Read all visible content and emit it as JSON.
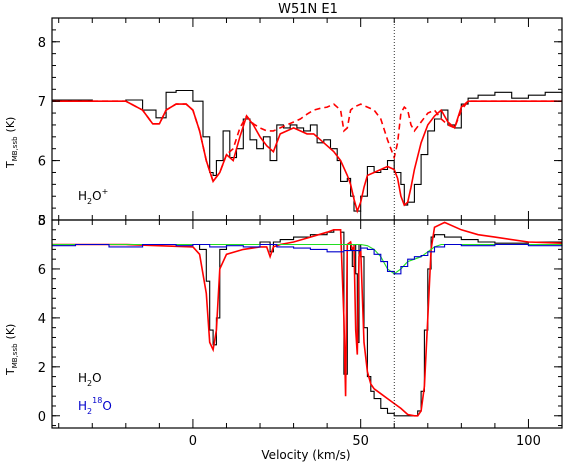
{
  "chart_data": [
    {
      "type": "line",
      "title": "W51N E1",
      "panel": "top",
      "ylabel_main": "T",
      "ylabel_sub": "MB,ssb",
      "ylabel_unit": "(K)",
      "annotation_main": "H",
      "annotation_sub": "2",
      "annotation_rest": "O",
      "annotation_sup": "+",
      "ylim": [
        5,
        8.4
      ],
      "yticks": [
        5,
        6,
        7,
        8
      ],
      "xlim": [
        -42,
        110
      ],
      "vline": 60,
      "series": [
        {
          "name": "",
          "color": "#000000",
          "style": "step",
          "x": [
            -42,
            -30,
            -20,
            -15,
            -11,
            -8,
            -5,
            0,
            3,
            5,
            6,
            7,
            9,
            11,
            13,
            15,
            17,
            19,
            21,
            23,
            25,
            27,
            29,
            31,
            33,
            35,
            37,
            39,
            41,
            43,
            44,
            46,
            47,
            48,
            49,
            50,
            52,
            54,
            56,
            58,
            60,
            62,
            63,
            64,
            66,
            68,
            70,
            72,
            74,
            76,
            78,
            80,
            82,
            85,
            90,
            95,
            100,
            105,
            110
          ],
          "y": [
            7.02,
            7.0,
            7.02,
            6.85,
            6.72,
            7.15,
            7.18,
            7.0,
            6.4,
            5.8,
            5.75,
            6.0,
            6.5,
            6.05,
            6.2,
            6.7,
            6.35,
            6.2,
            6.4,
            6.0,
            6.6,
            6.55,
            6.6,
            6.55,
            6.5,
            6.6,
            6.3,
            6.35,
            6.2,
            6.0,
            5.65,
            5.7,
            5.4,
            5.15,
            5.15,
            5.4,
            5.9,
            5.8,
            5.85,
            6.0,
            5.8,
            5.6,
            5.25,
            5.3,
            5.6,
            6.1,
            6.5,
            6.7,
            6.85,
            6.6,
            6.55,
            6.95,
            7.05,
            7.1,
            7.15,
            7.05,
            7.1,
            7.15,
            7.12
          ]
        },
        {
          "name": "",
          "color": "#ff0000",
          "style": "solid",
          "x": [
            -42,
            -30,
            -20,
            -15,
            -12,
            -10,
            -8,
            -5,
            -2,
            0,
            2,
            4,
            6,
            8,
            10,
            12,
            14,
            16,
            18,
            20,
            22,
            24,
            26,
            28,
            30,
            32,
            34,
            36,
            38,
            40,
            42,
            44,
            46,
            47,
            48,
            49,
            50,
            51,
            52,
            54,
            56,
            58,
            60,
            61,
            62,
            63,
            64,
            65,
            66,
            68,
            70,
            72,
            74,
            76,
            78,
            80,
            82,
            85,
            90,
            100,
            110
          ],
          "y": [
            7.0,
            7.0,
            7.0,
            6.85,
            6.62,
            6.62,
            6.85,
            6.95,
            6.95,
            6.85,
            6.5,
            6.0,
            5.65,
            5.8,
            6.1,
            6.0,
            6.4,
            6.75,
            6.6,
            6.4,
            6.25,
            6.15,
            6.45,
            6.5,
            6.55,
            6.5,
            6.45,
            6.45,
            6.35,
            6.25,
            6.15,
            6.0,
            5.75,
            5.6,
            5.35,
            5.15,
            5.3,
            5.55,
            5.75,
            5.8,
            5.85,
            5.9,
            5.85,
            5.7,
            5.4,
            5.25,
            5.3,
            5.55,
            5.85,
            6.3,
            6.6,
            6.75,
            6.85,
            6.65,
            6.55,
            6.9,
            7.0,
            7.0,
            7.0,
            7.0,
            7.0
          ]
        },
        {
          "name": "",
          "color": "#ff0000",
          "style": "dashed",
          "x": [
            -42,
            -30,
            -20,
            -15,
            -12,
            -10,
            -8,
            -5,
            -2,
            0,
            2,
            4,
            6,
            8,
            10,
            12,
            14,
            16,
            18,
            20,
            22,
            24,
            26,
            28,
            30,
            32,
            34,
            36,
            38,
            40,
            42,
            44,
            45,
            46,
            47,
            48,
            50,
            52,
            54,
            56,
            58,
            60,
            61,
            62,
            63,
            64,
            65,
            66,
            68,
            70,
            72,
            74,
            76,
            78,
            80,
            82,
            85,
            90,
            100,
            110
          ],
          "y": [
            7.0,
            7.0,
            7.0,
            6.85,
            6.62,
            6.62,
            6.85,
            6.95,
            6.95,
            6.85,
            6.5,
            6.0,
            5.65,
            5.8,
            6.1,
            6.2,
            6.55,
            6.75,
            6.62,
            6.55,
            6.5,
            6.5,
            6.55,
            6.6,
            6.65,
            6.7,
            6.78,
            6.85,
            6.88,
            6.9,
            6.95,
            6.85,
            6.5,
            6.55,
            6.85,
            6.9,
            6.95,
            6.9,
            6.85,
            6.7,
            6.35,
            6.05,
            6.3,
            6.8,
            6.9,
            6.85,
            6.6,
            6.5,
            6.65,
            6.8,
            6.85,
            6.7,
            6.6,
            6.55,
            6.85,
            7.0,
            7.0,
            7.0,
            7.0,
            7.0
          ]
        }
      ]
    },
    {
      "type": "line",
      "panel": "bottom",
      "ylabel_main": "T",
      "ylabel_sub": "MB,ssb",
      "ylabel_unit": "(K)",
      "xlabel": "Velocity  (km/s)",
      "ylim": [
        -0.5,
        8
      ],
      "yticks": [
        0,
        2,
        4,
        6,
        8
      ],
      "xlim": [
        -42,
        110
      ],
      "xticks": [
        0,
        50,
        100
      ],
      "vline": 60,
      "legend_line1": "H",
      "legend_line1_sub": "2",
      "legend_line1_rest": "O",
      "legend_line2": "H",
      "legend_line2_sub": "2",
      "legend_line2_sup": "18",
      "legend_line2_rest": "O",
      "legend_line1_color": "#000000",
      "legend_line2_color": "#0000cc",
      "series": [
        {
          "name": "H2O",
          "color": "#000000",
          "style": "step",
          "x": [
            -42,
            -20,
            0,
            2,
            4,
            5,
            6,
            7,
            8,
            10,
            15,
            20,
            22,
            23,
            24,
            26,
            30,
            35,
            40,
            42,
            44,
            45,
            46,
            47,
            47.5,
            48,
            48.5,
            49,
            49.5,
            50,
            51,
            52,
            53,
            54,
            56,
            58,
            60,
            62,
            64,
            66,
            67,
            68,
            69,
            70,
            71,
            72,
            75,
            80,
            85,
            90,
            100,
            110
          ],
          "y": [
            7.0,
            7.0,
            7.0,
            6.8,
            5.5,
            3.5,
            2.9,
            4.0,
            6.8,
            7.0,
            7.0,
            7.1,
            7.1,
            6.7,
            7.1,
            7.2,
            7.3,
            7.4,
            7.5,
            7.6,
            7.5,
            1.7,
            7.0,
            6.8,
            6.1,
            7.0,
            5.8,
            3.0,
            7.0,
            6.5,
            3.6,
            1.6,
            1.0,
            0.7,
            0.3,
            0.1,
            0.0,
            0.0,
            0.0,
            0.0,
            0.2,
            1.0,
            3.5,
            6.0,
            7.3,
            7.4,
            7.3,
            7.2,
            7.1,
            7.05,
            7.1,
            7.1
          ]
        },
        {
          "name": "",
          "color": "#ff0000",
          "style": "solid",
          "x": [
            -42,
            -20,
            0,
            2,
            4,
            5,
            6,
            7,
            8,
            10,
            15,
            20,
            22,
            23,
            24,
            26,
            30,
            35,
            40,
            42,
            44,
            45,
            45.5,
            46,
            47,
            47.5,
            48,
            48.5,
            49,
            49.5,
            50,
            51,
            52,
            53,
            54,
            56,
            58,
            60,
            62,
            64,
            66,
            67,
            68,
            69,
            70,
            71,
            72,
            75,
            80,
            85,
            90,
            100,
            110
          ],
          "y": [
            7.0,
            7.0,
            6.9,
            6.6,
            5.0,
            3.0,
            2.7,
            3.5,
            6.0,
            6.6,
            6.8,
            6.9,
            6.9,
            6.5,
            6.9,
            7.0,
            7.1,
            7.3,
            7.5,
            7.6,
            7.6,
            4.0,
            0.8,
            7.0,
            7.1,
            6.8,
            6.9,
            3.5,
            2.5,
            6.5,
            6.8,
            3.0,
            1.8,
            1.3,
            1.1,
            0.9,
            0.7,
            0.5,
            0.3,
            0.05,
            0.0,
            0.0,
            0.2,
            1.2,
            4.0,
            6.8,
            7.7,
            7.9,
            7.6,
            7.4,
            7.3,
            7.1,
            7.05
          ]
        },
        {
          "name": "",
          "color": "#22dd22",
          "style": "solid",
          "x": [
            -42,
            -20,
            0,
            20,
            40,
            50,
            52,
            54,
            56,
            58,
            60,
            62,
            64,
            66,
            68,
            70,
            72,
            74,
            80,
            90,
            110
          ],
          "y": [
            7.0,
            7.0,
            7.0,
            7.0,
            7.0,
            7.0,
            6.95,
            6.8,
            6.5,
            6.0,
            5.8,
            6.0,
            6.3,
            6.4,
            6.5,
            6.7,
            6.9,
            7.0,
            7.0,
            7.0,
            7.0
          ]
        },
        {
          "name": "H218O",
          "color": "#0000cc",
          "style": "step",
          "x": [
            -42,
            -35,
            -25,
            -15,
            -5,
            0,
            5,
            10,
            15,
            20,
            25,
            30,
            35,
            40,
            45,
            50,
            52,
            54,
            56,
            58,
            60,
            62,
            64,
            66,
            68,
            70,
            72,
            75,
            80,
            90,
            100,
            110
          ],
          "y": [
            6.95,
            7.0,
            6.9,
            7.0,
            6.95,
            7.0,
            6.9,
            6.95,
            6.9,
            7.0,
            6.9,
            6.85,
            6.8,
            6.7,
            6.75,
            6.85,
            6.8,
            6.6,
            6.3,
            5.9,
            5.8,
            6.1,
            6.4,
            6.5,
            6.55,
            6.7,
            6.9,
            7.0,
            6.95,
            7.0,
            6.95,
            7.0
          ]
        }
      ]
    }
  ]
}
